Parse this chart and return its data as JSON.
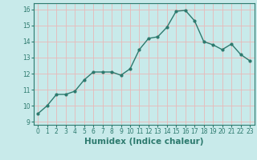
{
  "x": [
    0,
    1,
    2,
    3,
    4,
    5,
    6,
    7,
    8,
    9,
    10,
    11,
    12,
    13,
    14,
    15,
    16,
    17,
    18,
    19,
    20,
    21,
    22,
    23
  ],
  "y": [
    9.5,
    10.0,
    10.7,
    10.7,
    10.9,
    11.6,
    12.1,
    12.1,
    12.1,
    11.9,
    12.3,
    13.5,
    14.2,
    14.3,
    14.9,
    15.9,
    15.95,
    15.3,
    14.0,
    13.8,
    13.5,
    13.85,
    13.2,
    12.8
  ],
  "line_color": "#2d7a6e",
  "marker": "o",
  "markersize": 2.0,
  "linewidth": 1.0,
  "xlabel": "Humidex (Indice chaleur)",
  "xlim": [
    -0.5,
    23.5
  ],
  "ylim": [
    8.8,
    16.4
  ],
  "yticks": [
    9,
    10,
    11,
    12,
    13,
    14,
    15,
    16
  ],
  "xticks": [
    0,
    1,
    2,
    3,
    4,
    5,
    6,
    7,
    8,
    9,
    10,
    11,
    12,
    13,
    14,
    15,
    16,
    17,
    18,
    19,
    20,
    21,
    22,
    23
  ],
  "bg_color": "#c8eaea",
  "grid_color": "#e8b8b8",
  "tick_labelsize": 5.5,
  "xlabel_fontsize": 7.5,
  "xlabel_fontweight": "bold"
}
